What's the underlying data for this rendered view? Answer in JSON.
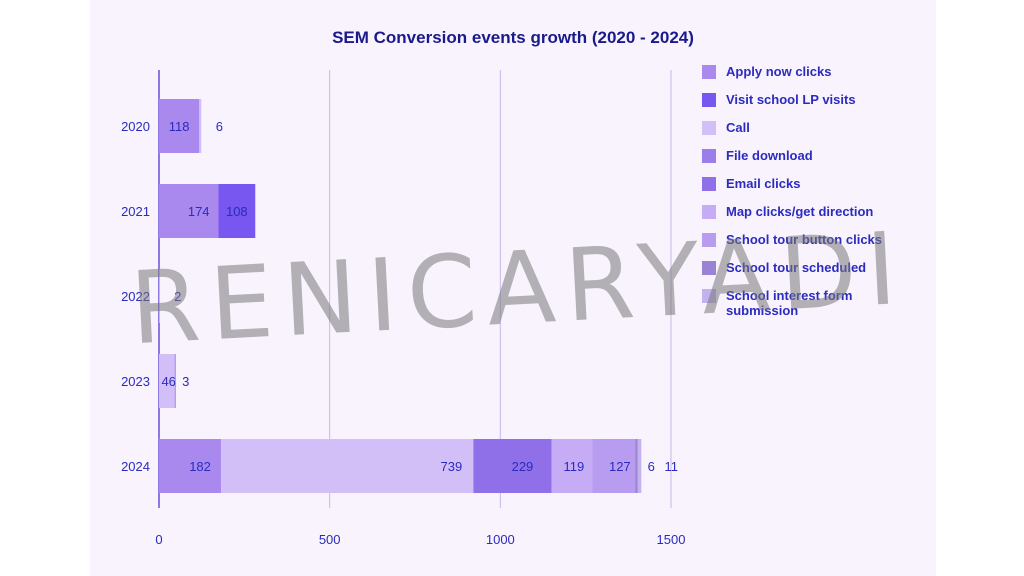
{
  "chart_data": {
    "type": "bar",
    "orientation": "horizontal",
    "stacked": true,
    "title": "SEM Conversion events growth (2020 - 2024)",
    "categories": [
      "2020",
      "2021",
      "2022",
      "2023",
      "2024"
    ],
    "xlim": [
      0,
      1500
    ],
    "xticks": [
      0,
      500,
      1000,
      1500
    ],
    "grid": true,
    "legend_position": "right",
    "series": [
      {
        "name": "Apply now clicks",
        "color": "#a989ee",
        "values": [
          118,
          174,
          0,
          0,
          182
        ]
      },
      {
        "name": "Visit school LP visits",
        "color": "#7856f0",
        "values": [
          0,
          108,
          0,
          0,
          0
        ]
      },
      {
        "name": "Call",
        "color": "#d3bff7",
        "values": [
          6,
          0,
          2,
          46,
          739
        ]
      },
      {
        "name": "File download",
        "color": "#9b7eea",
        "values": [
          0,
          0,
          0,
          3,
          0
        ]
      },
      {
        "name": "Email clicks",
        "color": "#9070e8",
        "values": [
          0,
          0,
          0,
          0,
          229
        ]
      },
      {
        "name": "Map clicks/get direction",
        "color": "#c6acf4",
        "values": [
          0,
          0,
          0,
          0,
          119
        ]
      },
      {
        "name": "School tour button clicks",
        "color": "#b89cf0",
        "values": [
          0,
          0,
          0,
          0,
          127
        ]
      },
      {
        "name": "School tour scheduled",
        "color": "#9a82d4",
        "values": [
          0,
          0,
          0,
          0,
          6
        ]
      },
      {
        "name": "School interest form submission",
        "color": "#c4b2ee",
        "values": [
          0,
          0,
          0,
          0,
          11
        ]
      }
    ],
    "data_labels": [
      {
        "category": "2020",
        "values": [
          "118",
          "6"
        ]
      },
      {
        "category": "2021",
        "values": [
          "174",
          "108"
        ]
      },
      {
        "category": "2022",
        "values": [
          "2"
        ]
      },
      {
        "category": "2023",
        "values": [
          "46",
          "3"
        ]
      },
      {
        "category": "2024",
        "values": [
          "182",
          "739",
          "229",
          "119",
          "127",
          "6",
          "11"
        ]
      }
    ]
  },
  "legend": {
    "items": [
      {
        "label": "Apply now clicks",
        "color": "#a989ee"
      },
      {
        "label": "Visit school LP visits",
        "color": "#7856f0"
      },
      {
        "label": "Call",
        "color": "#d3bff7"
      },
      {
        "label": "File download",
        "color": "#9b7eea"
      },
      {
        "label": "Email clicks",
        "color": "#9070e8"
      },
      {
        "label": "Map clicks/get direction",
        "color": "#c6acf4"
      },
      {
        "label": "School tour button clicks",
        "color": "#b89cf0"
      },
      {
        "label": "School tour scheduled",
        "color": "#9a82d4"
      },
      {
        "label": "School interest form submission",
        "color": "#c4b2ee"
      }
    ]
  },
  "watermark": {
    "text": "RENICARYADI"
  },
  "colors": {
    "text": "#2b2bc0",
    "title": "#1a1a8c",
    "grid": "#c8b8ec",
    "background": "#f8f3fc"
  }
}
